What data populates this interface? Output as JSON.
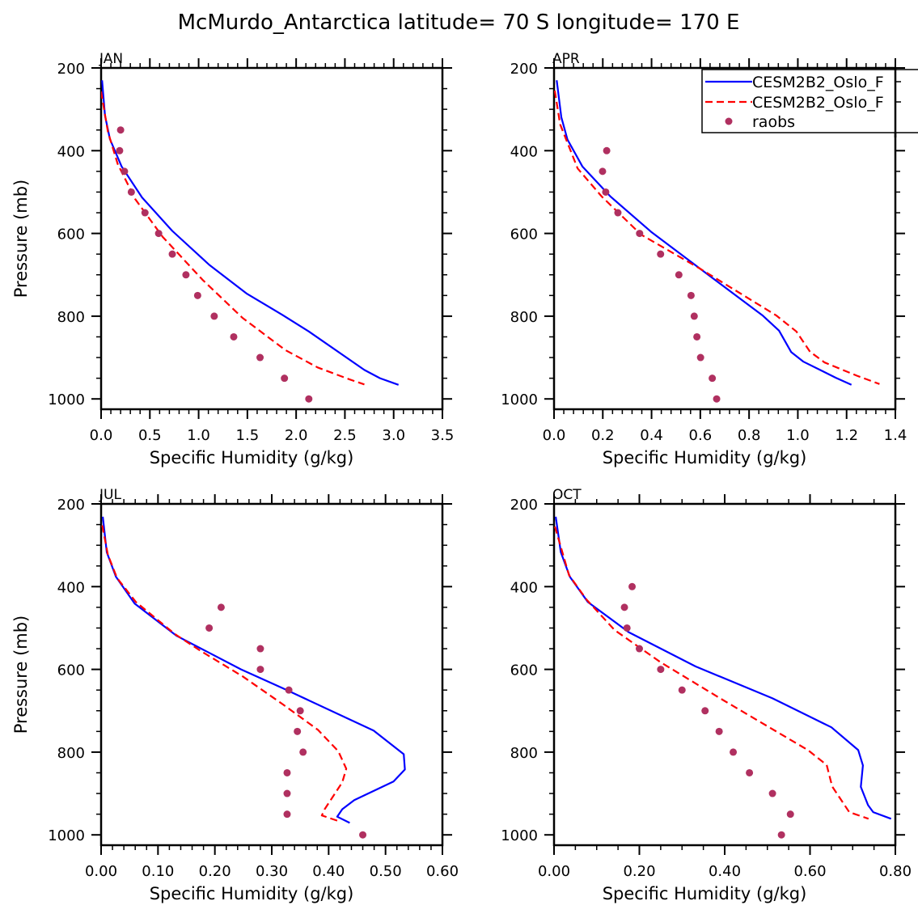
{
  "chart_data": {
    "type": "line",
    "title": "McMurdo_Antarctica  latitude= 70 S longitude= 170 E",
    "legend": {
      "placement": "top-right of APR panel",
      "entries": [
        {
          "label": "CESM2B2_Oslo_F",
          "style": "solid",
          "color": "#0000ff"
        },
        {
          "label": "CESM2B2_Oslo_F",
          "style": "dashed",
          "color": "#ff0000"
        },
        {
          "label": "raobs",
          "style": "marker",
          "color": "#b03060"
        }
      ]
    },
    "panels": [
      {
        "month": "JAN",
        "xlabel": "Specific Humidity (g/kg)",
        "ylabel": "Pressure (mb)",
        "xlim": [
          0,
          3.5
        ],
        "ylim": [
          200,
          1025
        ],
        "y_inverted": true,
        "xticks": [
          "0.0",
          "0.5",
          "1.0",
          "1.5",
          "2.0",
          "2.5",
          "3.0",
          "3.5"
        ],
        "xtick_values": [
          0,
          0.5,
          1.0,
          1.5,
          2.0,
          2.5,
          3.0,
          3.5
        ],
        "x_minor_per_major": 5,
        "yticks": [
          "200",
          "400",
          "600",
          "800",
          "1000"
        ],
        "ytick_values": [
          200,
          400,
          600,
          800,
          1000
        ],
        "series": [
          {
            "name": "CESM2B2_Oslo_F (solid)",
            "x": [
              0.01,
              0.04,
              0.09,
              0.21,
              0.42,
              0.73,
              1.11,
              1.49,
              1.86,
              2.13,
              2.7,
              2.86,
              3.05
            ],
            "p": [
              230,
              315,
              372,
              438,
              513,
              594,
              676,
              745,
              797,
              837,
              930,
              950,
              966
            ]
          },
          {
            "name": "CESM2B2_Oslo_F (dashed)",
            "x": [
              0.0,
              0.07,
              0.17,
              0.35,
              0.63,
              1.04,
              1.45,
              1.89,
              2.22,
              2.55,
              2.7
            ],
            "p": [
              257,
              354,
              432,
              517,
              608,
              712,
              804,
              882,
              924,
              953,
              965
            ]
          },
          {
            "name": "raobs",
            "x": [
              0.2,
              0.19,
              0.24,
              0.31,
              0.45,
              0.59,
              0.73,
              0.87,
              0.99,
              1.16,
              1.36,
              1.63,
              1.88,
              2.13
            ],
            "p": [
              350,
              400,
              450,
              500,
              550,
              600,
              650,
              700,
              750,
              800,
              850,
              900,
              950,
              1000
            ]
          }
        ]
      },
      {
        "month": "APR",
        "xlabel": "Specific Humidity (g/kg)",
        "ylabel": "",
        "xlim": [
          0,
          1.4
        ],
        "ylim": [
          200,
          1025
        ],
        "y_inverted": true,
        "xticks": [
          "0.0",
          "0.2",
          "0.4",
          "0.6",
          "0.8",
          "1.0",
          "1.2",
          "1.4"
        ],
        "xtick_values": [
          0,
          0.2,
          0.4,
          0.6,
          0.8,
          1.0,
          1.2,
          1.4
        ],
        "x_minor_per_major": 5,
        "yticks": [
          "200",
          "400",
          "600",
          "800",
          "1000"
        ],
        "ytick_values": [
          200,
          400,
          600,
          800,
          1000
        ],
        "series": [
          {
            "name": "CESM2B2_Oslo_F (solid)",
            "x": [
              0.011,
              0.03,
              0.055,
              0.116,
              0.232,
              0.398,
              0.603,
              0.857,
              0.923,
              0.973,
              1.023,
              1.156,
              1.22
            ],
            "p": [
              230,
              319,
              373,
              438,
              511,
              596,
              687,
              799,
              835,
              887,
              910,
              949,
              966
            ]
          },
          {
            "name": "CESM2B2_Oslo_F (dashed)",
            "x": [
              0.003,
              0.025,
              0.097,
              0.196,
              0.357,
              0.601,
              0.911,
              0.994,
              1.05,
              1.11,
              1.243,
              1.335
            ],
            "p": [
              255,
              336,
              443,
              511,
              603,
              686,
              798,
              837,
              886,
              912,
              944,
              964
            ]
          },
          {
            "name": "raobs",
            "x": [
              0.216,
              0.199,
              0.212,
              0.262,
              0.351,
              0.437,
              0.512,
              0.562,
              0.575,
              0.586,
              0.601,
              0.649,
              0.667
            ],
            "p": [
              400,
              450,
              500,
              550,
              600,
              650,
              700,
              750,
              800,
              850,
              900,
              950,
              1000
            ]
          }
        ]
      },
      {
        "month": "JUL",
        "xlabel": "Specific Humidity (g/kg)",
        "ylabel": "Pressure (mb)",
        "xlim": [
          0,
          0.6
        ],
        "ylim": [
          200,
          1025
        ],
        "y_inverted": true,
        "xticks": [
          "0.00",
          "0.10",
          "0.20",
          "0.30",
          "0.40",
          "0.50",
          "0.60"
        ],
        "xtick_values": [
          0,
          0.1,
          0.2,
          0.3,
          0.4,
          0.5,
          0.6
        ],
        "x_minor_per_major": 5,
        "yticks": [
          "200",
          "400",
          "600",
          "800",
          "1000"
        ],
        "ytick_values": [
          200,
          400,
          600,
          800,
          1000
        ],
        "series": [
          {
            "name": "CESM2B2_Oslo_F (solid)",
            "x": [
              0.003,
              0.01,
              0.026,
              0.059,
              0.133,
              0.246,
              0.32,
              0.479,
              0.532,
              0.534,
              0.514,
              0.445,
              0.424,
              0.415,
              0.437
            ],
            "p": [
              231,
              317,
              376,
              441,
              519,
              600,
              646,
              748,
              805,
              842,
              871,
              916,
              938,
              956,
              971
            ]
          },
          {
            "name": "CESM2B2_Oslo_F (dashed)",
            "x": [
              0.002,
              0.012,
              0.028,
              0.061,
              0.13,
              0.178,
              0.249,
              0.32,
              0.381,
              0.417,
              0.431,
              0.424,
              0.393,
              0.388,
              0.42
            ],
            "p": [
              252,
              323,
              379,
              437,
              515,
              558,
              617,
              685,
              746,
              798,
              840,
              873,
              938,
              953,
              968
            ]
          },
          {
            "name": "raobs",
            "x": [
              0.211,
              0.19,
              0.28,
              0.28,
              0.33,
              0.35,
              0.345,
              0.355,
              0.327,
              0.327,
              0.327,
              0.46
            ],
            "p": [
              450,
              500,
              550,
              600,
              650,
              700,
              750,
              800,
              850,
              900,
              950,
              1000
            ]
          }
        ]
      },
      {
        "month": "OCT",
        "xlabel": "Specific Humidity (g/kg)",
        "ylabel": "",
        "xlim": [
          0,
          0.8
        ],
        "ylim": [
          200,
          1025
        ],
        "y_inverted": true,
        "xticks": [
          "0.00",
          "0.20",
          "0.40",
          "0.60",
          "0.80"
        ],
        "xtick_values": [
          0,
          0.2,
          0.4,
          0.6,
          0.8
        ],
        "x_minor_per_major": 4,
        "yticks": [
          "200",
          "400",
          "600",
          "800",
          "1000"
        ],
        "ytick_values": [
          200,
          400,
          600,
          800,
          1000
        ],
        "series": [
          {
            "name": "CESM2B2_Oslo_F (solid)",
            "x": [
              0.004,
              0.016,
              0.037,
              0.079,
              0.175,
              0.332,
              0.512,
              0.65,
              0.713,
              0.724,
              0.719,
              0.736,
              0.748,
              0.79
            ],
            "p": [
              231,
              317,
              376,
              437,
              510,
              593,
              670,
              740,
              795,
              832,
              884,
              928,
              945,
              961
            ]
          },
          {
            "name": "CESM2B2_Oslo_F (dashed)",
            "x": [
              0.002,
              0.035,
              0.076,
              0.142,
              0.25,
              0.396,
              0.595,
              0.639,
              0.652,
              0.692,
              0.737
            ],
            "p": [
              255,
              372,
              431,
              505,
              583,
              674,
              795,
              831,
              883,
              945,
              961
            ]
          },
          {
            "name": "raobs",
            "x": [
              0.183,
              0.165,
              0.171,
              0.2,
              0.25,
              0.3,
              0.354,
              0.387,
              0.42,
              0.458,
              0.512,
              0.554,
              0.533
            ],
            "p": [
              400,
              450,
              500,
              550,
              600,
              650,
              700,
              750,
              800,
              850,
              900,
              950,
              1000
            ]
          }
        ]
      }
    ]
  },
  "styles": {
    "model_solid_color": "#0000ff",
    "model_dashed_color": "#ff0000",
    "raobs_color": "#b03060"
  }
}
